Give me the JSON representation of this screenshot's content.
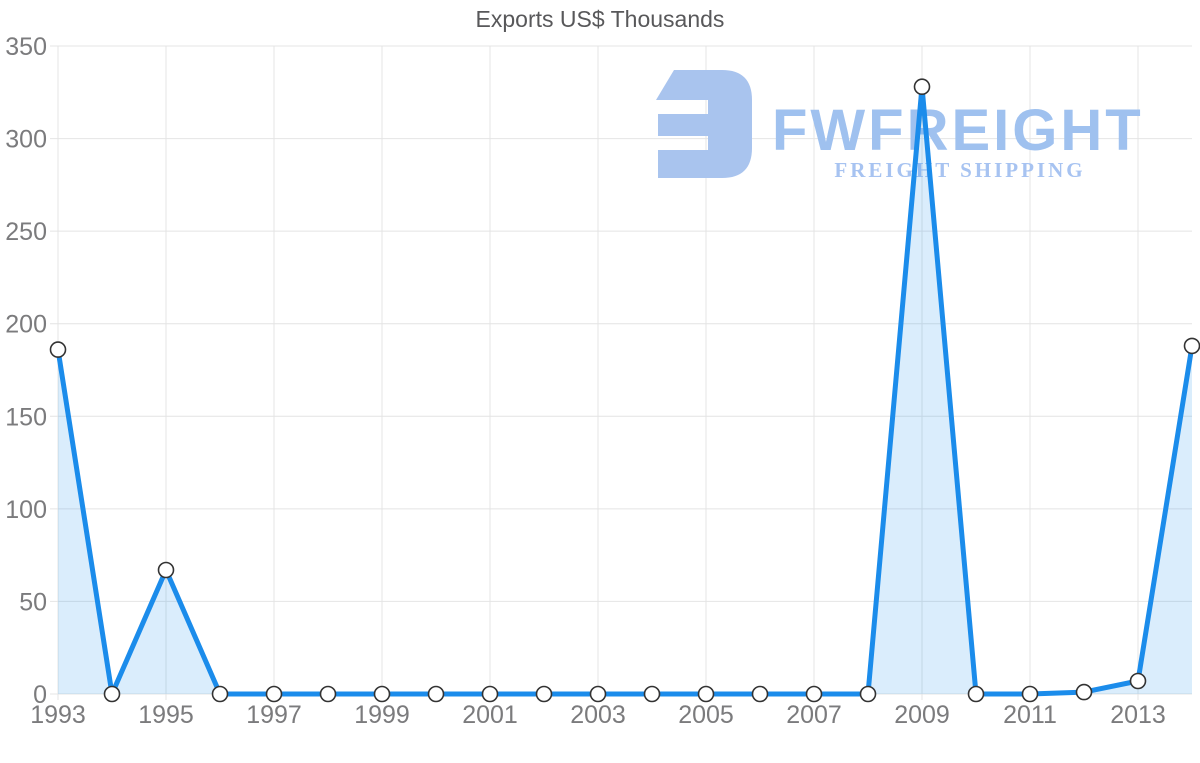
{
  "chart_data": {
    "type": "area",
    "title": "Exports US$ Thousands",
    "xlabel": "",
    "ylabel": "",
    "x": [
      1993,
      1994,
      1995,
      1996,
      1997,
      1998,
      1999,
      2000,
      2001,
      2002,
      2003,
      2004,
      2005,
      2006,
      2007,
      2008,
      2009,
      2010,
      2011,
      2012,
      2013,
      2014
    ],
    "series": [
      {
        "name": "Exports US$ Thousands",
        "values": [
          186,
          0,
          67,
          0,
          0,
          0,
          0,
          0,
          0,
          0,
          0,
          0,
          0,
          0,
          0,
          0,
          328,
          0,
          0,
          1,
          7,
          188
        ]
      }
    ],
    "ylim": [
      0,
      350
    ],
    "y_ticks": [
      0,
      50,
      100,
      150,
      200,
      250,
      300,
      350
    ],
    "x_tick_years": [
      1993,
      1995,
      1997,
      1999,
      2001,
      2003,
      2005,
      2007,
      2009,
      2011,
      2013
    ],
    "grid": true,
    "legend": "none",
    "colors": {
      "line": "#1b8ceb",
      "area_fill": "rgba(27,140,235,0.16)",
      "marker_fill": "#ffffff",
      "marker_stroke": "#333333",
      "grid": "#e4e4e4",
      "tick_text": "#7b7b7d",
      "title_text": "#58585a"
    }
  },
  "watermark": {
    "brand": "FWFREIGHT",
    "tagline": "FREIGHT SHIPPING",
    "logo_color": "#a9c4ee"
  }
}
